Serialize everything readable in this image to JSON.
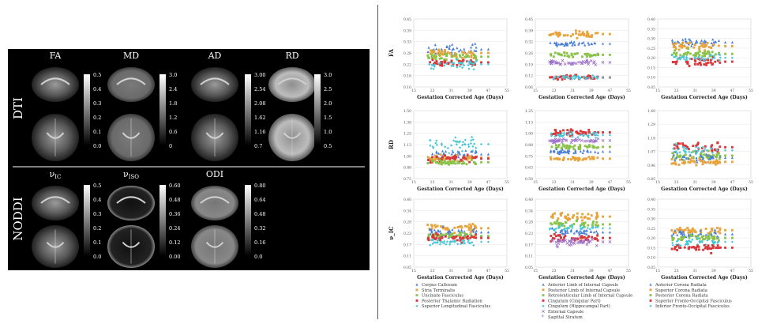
{
  "left_panel": {
    "dti_label": "DTI",
    "noddi_label": "NODDI",
    "dti_columns": [
      {
        "title": "FA",
        "ticks": [
          "0.5",
          "0.4",
          "0.3",
          "0.2",
          "0.1",
          "0.0"
        ]
      },
      {
        "title": "MD",
        "ticks": [
          "3.0",
          "2.4",
          "1.8",
          "1.2",
          "0.6",
          "0"
        ]
      },
      {
        "title": "AD",
        "ticks": [
          "3.00",
          "2.54",
          "2.08",
          "1.62",
          "1.16",
          "0.7"
        ]
      },
      {
        "title": "RD",
        "ticks": [
          "3.0",
          "2.5",
          "2.0",
          "1.5",
          "1.0",
          "0.5"
        ]
      }
    ],
    "noddi_columns": [
      {
        "title": "ν",
        "sub": "IC",
        "ticks": [
          "0.5",
          "0.4",
          "0.3",
          "0.2",
          "0.1",
          "0.0"
        ]
      },
      {
        "title": "ν",
        "sub": "ISO",
        "ticks": [
          "0.60",
          "0.48",
          "0.36",
          "0.24",
          "0.12",
          "0.00"
        ]
      },
      {
        "title": "ODI",
        "sub": "",
        "ticks": [
          "0.80",
          "0.64",
          "0.48",
          "0.32",
          "0.16",
          "0.0"
        ]
      }
    ]
  },
  "xlabel": "Gestation Corrected Age (Days)",
  "row_labels": [
    "FA",
    "RD",
    "ν_IC"
  ],
  "x_ticks": [
    "15",
    "23",
    "31",
    "39",
    "47",
    "55"
  ],
  "chart_data": {
    "type": "scatter",
    "xlim": [
      15,
      55
    ],
    "panels": [
      {
        "row": 0,
        "col": 0,
        "ylim": [
          0.09,
          0.45
        ],
        "yticks": [
          "0.45",
          "0.39",
          "0.33",
          "0.28",
          "0.22",
          "0.16",
          "0.10"
        ],
        "series": [
          {
            "color": "#4a7fd6",
            "marker": "triangle",
            "x_range": [
              21,
              42
            ],
            "y_mean": 0.29,
            "y_spread": 0.05
          },
          {
            "color": "#e8a33a",
            "marker": "square",
            "x_range": [
              21,
              42
            ],
            "y_mean": 0.27,
            "y_spread": 0.04
          },
          {
            "color": "#8bc34a",
            "marker": "square",
            "x_range": [
              21,
              42
            ],
            "y_mean": 0.25,
            "y_spread": 0.03
          },
          {
            "color": "#d9373a",
            "marker": "square",
            "x_range": [
              21,
              42
            ],
            "y_mean": 0.22,
            "y_spread": 0.03
          },
          {
            "color": "#49c6d8",
            "marker": "diamond",
            "x_range": [
              21,
              42
            ],
            "y_mean": 0.21,
            "y_spread": 0.04
          }
        ]
      },
      {
        "row": 0,
        "col": 1,
        "ylim": [
          0.09,
          0.45
        ],
        "yticks": [
          "0.45",
          "0.39",
          "0.32",
          "0.26",
          "0.19",
          "0.12",
          "0.06"
        ],
        "series": [
          {
            "color": "#e8a33a",
            "marker": "square",
            "x_range": [
              21,
              42
            ],
            "y_mean": 0.37,
            "y_spread": 0.03
          },
          {
            "color": "#4a7fd6",
            "marker": "triangle",
            "x_range": [
              21,
              42
            ],
            "y_mean": 0.32,
            "y_spread": 0.02
          },
          {
            "color": "#8bc34a",
            "marker": "square",
            "x_range": [
              21,
              42
            ],
            "y_mean": 0.26,
            "y_spread": 0.02
          },
          {
            "color": "#9c6fc9",
            "marker": "x",
            "x_range": [
              21,
              42
            ],
            "y_mean": 0.22,
            "y_spread": 0.02
          },
          {
            "color": "#d9373a",
            "marker": "square",
            "x_range": [
              21,
              42
            ],
            "y_mean": 0.14,
            "y_spread": 0.02
          },
          {
            "color": "#49c6d8",
            "marker": "diamond",
            "x_range": [
              21,
              42
            ],
            "y_mean": 0.14,
            "y_spread": 0.02
          }
        ]
      },
      {
        "row": 0,
        "col": 2,
        "ylim": [
          0.05,
          0.4
        ],
        "yticks": [
          "0.40",
          "0.35",
          "0.30",
          "0.25",
          "0.20",
          "0.15",
          "0.10",
          "0.05"
        ],
        "series": [
          {
            "color": "#4a7fd6",
            "marker": "triangle",
            "x_range": [
              21,
              42
            ],
            "y_mean": 0.28,
            "y_spread": 0.03
          },
          {
            "color": "#e8a33a",
            "marker": "square",
            "x_range": [
              21,
              42
            ],
            "y_mean": 0.26,
            "y_spread": 0.03
          },
          {
            "color": "#8bc34a",
            "marker": "square",
            "x_range": [
              21,
              42
            ],
            "y_mean": 0.22,
            "y_spread": 0.03
          },
          {
            "color": "#d9373a",
            "marker": "square",
            "x_range": [
              21,
              42
            ],
            "y_mean": 0.18,
            "y_spread": 0.03
          },
          {
            "color": "#49c6d8",
            "marker": "diamond",
            "x_range": [
              21,
              42
            ],
            "y_mean": 0.2,
            "y_spread": 0.03
          }
        ]
      },
      {
        "row": 1,
        "col": 0,
        "ylim": [
          0.75,
          1.5
        ],
        "yticks": [
          "1.50",
          "1.38",
          "1.25",
          "1.13",
          "1.00",
          "0.88",
          "0.75"
        ],
        "series": [
          {
            "color": "#49c6d8",
            "marker": "diamond",
            "x_range": [
              21,
              42
            ],
            "y_mean": 1.13,
            "y_spread": 0.12
          },
          {
            "color": "#4a7fd6",
            "marker": "triangle",
            "x_range": [
              21,
              42
            ],
            "y_mean": 1.02,
            "y_spread": 0.08
          },
          {
            "color": "#e8a33a",
            "marker": "square",
            "x_range": [
              21,
              42
            ],
            "y_mean": 0.98,
            "y_spread": 0.06
          },
          {
            "color": "#d9373a",
            "marker": "square",
            "x_range": [
              21,
              42
            ],
            "y_mean": 0.97,
            "y_spread": 0.08
          },
          {
            "color": "#8bc34a",
            "marker": "square",
            "x_range": [
              21,
              42
            ],
            "y_mean": 0.93,
            "y_spread": 0.05
          }
        ]
      },
      {
        "row": 1,
        "col": 1,
        "ylim": [
          0.5,
          1.25
        ],
        "yticks": [
          "1.25",
          "1.13",
          "1.00",
          "0.88",
          "0.75",
          "0.63",
          "0.50"
        ],
        "series": [
          {
            "color": "#d9373a",
            "marker": "square",
            "x_range": [
              21,
              42
            ],
            "y_mean": 1.01,
            "y_spread": 0.06
          },
          {
            "color": "#49c6d8",
            "marker": "diamond",
            "x_range": [
              21,
              42
            ],
            "y_mean": 0.98,
            "y_spread": 0.05
          },
          {
            "color": "#9c6fc9",
            "marker": "x",
            "x_range": [
              21,
              42
            ],
            "y_mean": 0.92,
            "y_spread": 0.04
          },
          {
            "color": "#8bc34a",
            "marker": "square",
            "x_range": [
              21,
              42
            ],
            "y_mean": 0.85,
            "y_spread": 0.04
          },
          {
            "color": "#4a7fd6",
            "marker": "triangle",
            "x_range": [
              21,
              42
            ],
            "y_mean": 0.8,
            "y_spread": 0.04
          },
          {
            "color": "#e8a33a",
            "marker": "square",
            "x_range": [
              21,
              42
            ],
            "y_mean": 0.72,
            "y_spread": 0.03
          }
        ]
      },
      {
        "row": 1,
        "col": 2,
        "ylim": [
          0.8,
          1.45
        ],
        "yticks": [
          "1.40",
          "1.29",
          "1.18",
          "1.07",
          "0.96",
          "0.85"
        ],
        "series": [
          {
            "color": "#d9373a",
            "marker": "square",
            "x_range": [
              21,
              42
            ],
            "y_mean": 1.1,
            "y_spread": 0.08
          },
          {
            "color": "#49c6d8",
            "marker": "diamond",
            "x_range": [
              21,
              42
            ],
            "y_mean": 1.07,
            "y_spread": 0.08
          },
          {
            "color": "#8bc34a",
            "marker": "square",
            "x_range": [
              21,
              42
            ],
            "y_mean": 1.02,
            "y_spread": 0.07
          },
          {
            "color": "#4a7fd6",
            "marker": "triangle",
            "x_range": [
              21,
              42
            ],
            "y_mean": 1.0,
            "y_spread": 0.06
          },
          {
            "color": "#e8a33a",
            "marker": "square",
            "x_range": [
              21,
              42
            ],
            "y_mean": 0.96,
            "y_spread": 0.05
          }
        ]
      },
      {
        "row": 2,
        "col": 0,
        "ylim": [
          0.05,
          0.4
        ],
        "yticks": [
          "0.40",
          "0.34",
          "0.28",
          "0.23",
          "0.17",
          "0.11",
          "0.05"
        ],
        "series": [
          {
            "color": "#e8a33a",
            "marker": "square",
            "x_range": [
              21,
              42
            ],
            "y_mean": 0.25,
            "y_spread": 0.04
          },
          {
            "color": "#4a7fd6",
            "marker": "triangle",
            "x_range": [
              21,
              42
            ],
            "y_mean": 0.23,
            "y_spread": 0.04
          },
          {
            "color": "#8bc34a",
            "marker": "square",
            "x_range": [
              21,
              42
            ],
            "y_mean": 0.21,
            "y_spread": 0.03
          },
          {
            "color": "#d9373a",
            "marker": "square",
            "x_range": [
              21,
              42
            ],
            "y_mean": 0.2,
            "y_spread": 0.03
          },
          {
            "color": "#49c6d8",
            "marker": "diamond",
            "x_range": [
              21,
              42
            ],
            "y_mean": 0.18,
            "y_spread": 0.03
          }
        ]
      },
      {
        "row": 2,
        "col": 1,
        "ylim": [
          0.05,
          0.4
        ],
        "yticks": [
          "0.40",
          "0.34",
          "0.28",
          "0.23",
          "0.17",
          "0.11",
          "0.05"
        ],
        "series": [
          {
            "color": "#e8a33a",
            "marker": "square",
            "x_range": [
              21,
              42
            ],
            "y_mean": 0.31,
            "y_spread": 0.03
          },
          {
            "color": "#8bc34a",
            "marker": "square",
            "x_range": [
              21,
              42
            ],
            "y_mean": 0.27,
            "y_spread": 0.03
          },
          {
            "color": "#49c6d8",
            "marker": "diamond",
            "x_range": [
              21,
              42
            ],
            "y_mean": 0.25,
            "y_spread": 0.03
          },
          {
            "color": "#4a7fd6",
            "marker": "triangle",
            "x_range": [
              21,
              42
            ],
            "y_mean": 0.23,
            "y_spread": 0.03
          },
          {
            "color": "#d9373a",
            "marker": "square",
            "x_range": [
              21,
              42
            ],
            "y_mean": 0.2,
            "y_spread": 0.03
          },
          {
            "color": "#9c6fc9",
            "marker": "x",
            "x_range": [
              21,
              42
            ],
            "y_mean": 0.18,
            "y_spread": 0.03
          }
        ]
      },
      {
        "row": 2,
        "col": 2,
        "ylim": [
          0.05,
          0.4
        ],
        "yticks": [
          "0.40",
          "0.35",
          "0.30",
          "0.25",
          "0.20",
          "0.15",
          "0.10",
          "0.05"
        ],
        "series": [
          {
            "color": "#e8a33a",
            "marker": "square",
            "x_range": [
              21,
              42
            ],
            "y_mean": 0.24,
            "y_spread": 0.03
          },
          {
            "color": "#4a7fd6",
            "marker": "triangle",
            "x_range": [
              21,
              42
            ],
            "y_mean": 0.22,
            "y_spread": 0.03
          },
          {
            "color": "#8bc34a",
            "marker": "square",
            "x_range": [
              21,
              42
            ],
            "y_mean": 0.2,
            "y_spread": 0.03
          },
          {
            "color": "#49c6d8",
            "marker": "diamond",
            "x_range": [
              21,
              42
            ],
            "y_mean": 0.18,
            "y_spread": 0.03
          },
          {
            "color": "#d9373a",
            "marker": "square",
            "x_range": [
              21,
              42
            ],
            "y_mean": 0.15,
            "y_spread": 0.03
          }
        ]
      }
    ]
  },
  "legend": [
    [
      {
        "label": "Corpus Callosum",
        "color": "#4a7fd6",
        "marker": "triangle"
      },
      {
        "label": "Stria Terminalis",
        "color": "#e8a33a",
        "marker": "square"
      },
      {
        "label": "Uncinate Fasciculus",
        "color": "#8bc34a",
        "marker": "square"
      },
      {
        "label": "Posterior Thalamic Radiation",
        "color": "#d9373a",
        "marker": "square"
      },
      {
        "label": "Superior Longitudinal Fasciculus",
        "color": "#49c6d8",
        "marker": "diamond"
      }
    ],
    [
      {
        "label": "Anterior Limb of Internal Capsule",
        "color": "#4a7fd6",
        "marker": "triangle"
      },
      {
        "label": "Posterior Limb of Internal Capsule",
        "color": "#e8a33a",
        "marker": "square"
      },
      {
        "label": "Retrolenticular Limb of Internal Capsule",
        "color": "#8bc34a",
        "marker": "square"
      },
      {
        "label": "Cingulum (Cingular Part)",
        "color": "#d9373a",
        "marker": "square"
      },
      {
        "label": "Cingulum (Hippocampal Part)",
        "color": "#49c6d8",
        "marker": "diamond"
      },
      {
        "label": "External Capsule",
        "color": "#9c6fc9",
        "marker": "x"
      },
      {
        "label": "Sagittal Stratum",
        "color": "#9c6fc9",
        "marker": "star"
      }
    ],
    [
      {
        "label": "Anterior Corona Radiata",
        "color": "#4a7fd6",
        "marker": "triangle"
      },
      {
        "label": "Superior Corona Radiata",
        "color": "#e8a33a",
        "marker": "square"
      },
      {
        "label": "Posterior Corona Radiata",
        "color": "#8bc34a",
        "marker": "square"
      },
      {
        "label": "Superior Fronto-Occipital Fasciculus",
        "color": "#d9373a",
        "marker": "square"
      },
      {
        "label": "Inferior Fronto-Occipital Fasciculus",
        "color": "#49c6d8",
        "marker": "diamond"
      }
    ]
  ]
}
